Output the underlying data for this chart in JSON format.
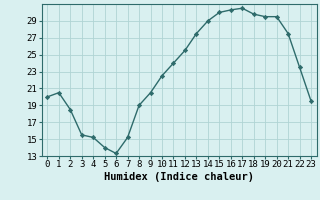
{
  "x": [
    0,
    1,
    2,
    3,
    4,
    5,
    6,
    7,
    8,
    9,
    10,
    11,
    12,
    13,
    14,
    15,
    16,
    17,
    18,
    19,
    20,
    21,
    22,
    23
  ],
  "y": [
    20.0,
    20.5,
    18.5,
    15.5,
    15.2,
    14.0,
    13.3,
    15.2,
    19.0,
    20.5,
    22.5,
    24.0,
    25.5,
    27.5,
    29.0,
    30.0,
    30.3,
    30.5,
    29.8,
    29.5,
    29.5,
    27.5,
    23.5,
    19.5
  ],
  "line_color": "#2e6b6b",
  "marker": "D",
  "marker_size": 2.2,
  "bg_color": "#d9f0f0",
  "grid_color": "#b0d4d4",
  "xlabel": "Humidex (Indice chaleur)",
  "ylabel": "",
  "xlim": [
    -0.5,
    23.5
  ],
  "ylim": [
    13,
    31
  ],
  "yticks": [
    13,
    15,
    17,
    19,
    21,
    23,
    25,
    27,
    29
  ],
  "xtick_labels": [
    "0",
    "1",
    "2",
    "3",
    "4",
    "5",
    "6",
    "7",
    "8",
    "9",
    "10",
    "11",
    "12",
    "13",
    "14",
    "15",
    "16",
    "17",
    "18",
    "19",
    "20",
    "21",
    "22",
    "23"
  ],
  "xlabel_fontsize": 7.5,
  "tick_fontsize": 6.5,
  "linewidth": 1.0
}
